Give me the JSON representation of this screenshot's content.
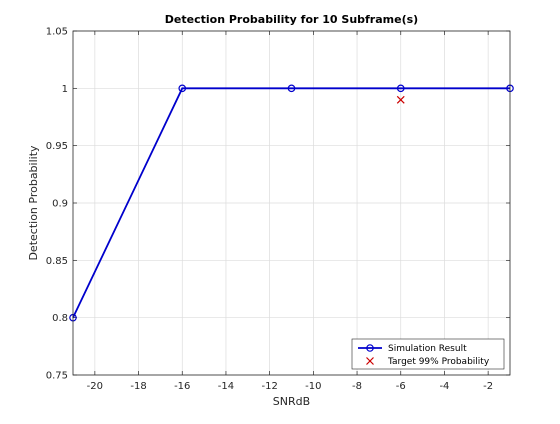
{
  "chart_data": {
    "type": "line",
    "title": "Detection Probability for 10 Subframe(s)",
    "xlabel": "SNRdB",
    "ylabel": "Detection Probability",
    "xlim": [
      -21,
      -1
    ],
    "ylim": [
      0.75,
      1.05
    ],
    "grid": true,
    "legend_location": "bottom-right",
    "x_ticks": [
      -20,
      -18,
      -16,
      -14,
      -12,
      -10,
      -8,
      -6,
      -4,
      -2
    ],
    "x_tick_labels": [
      "-20",
      "-18",
      "-16",
      "-14",
      "-12",
      "-10",
      "-8",
      "-6",
      "-4",
      "-2"
    ],
    "y_ticks": [
      0.75,
      0.8,
      0.85,
      0.9,
      0.95,
      1,
      1.05
    ],
    "y_tick_labels": [
      "0.75",
      "0.8",
      "0.85",
      "0.9",
      "0.95",
      "1",
      "1.05"
    ],
    "series": [
      {
        "name": "Simulation Result",
        "marker": "circle",
        "color": "#0000cc",
        "x": [
          -21,
          -16,
          -11,
          -6,
          -1
        ],
        "y": [
          0.8,
          1,
          1,
          1,
          1
        ]
      },
      {
        "name": "Target 99% Probability",
        "marker": "x",
        "color": "#cc0000",
        "x": [
          -6
        ],
        "y": [
          0.99
        ]
      }
    ]
  }
}
